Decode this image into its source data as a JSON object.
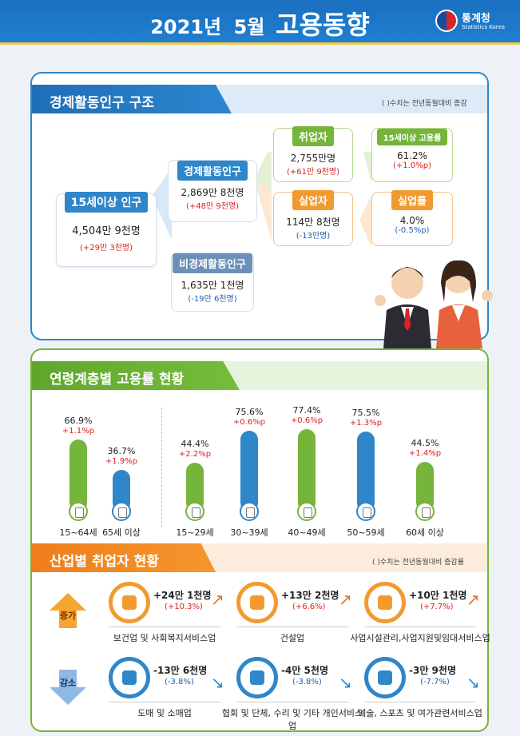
{
  "header": {
    "year_label": "2021년",
    "month_label": "5월",
    "title": "고용동향",
    "logo_name": "통계청",
    "logo_sub": "Statistics Korea"
  },
  "section1": {
    "title": "경제활동인구 구조",
    "note": "( )수치는 전년동월대비 증감",
    "population": {
      "label": "15세이상 인구",
      "value": "4,504만 9천명",
      "change": "(+29만 3천명)"
    },
    "active": {
      "label": "경제활동인구",
      "value": "2,869만 8천명",
      "change": "(+48만 9천명)"
    },
    "inactive": {
      "label": "비경제활동인구",
      "value": "1,635만 1천명",
      "change": "(-19만 6천명)"
    },
    "employed": {
      "label": "취업자",
      "value": "2,755만명",
      "change": "(+61만 9천명)"
    },
    "unemployed": {
      "label": "실업자",
      "value": "114만 8천명",
      "change": "(-13만명)"
    },
    "emp_rate": {
      "label": "15세이상 고용률",
      "value": "61.2%",
      "change": "(+1.0%p)"
    },
    "unemp_rate": {
      "label": "실업률",
      "value": "4.0%",
      "change": "(-0.5%p)"
    }
  },
  "section2": {
    "title": "연령계층별 고용률 현황"
  },
  "chart_data": {
    "type": "bar",
    "categories": [
      "15~64세",
      "65세 이상",
      "15~29세",
      "30~39세",
      "40~49세",
      "50~59세",
      "60세 이상"
    ],
    "values": [
      66.9,
      36.7,
      44.4,
      75.6,
      77.4,
      75.5,
      44.5
    ],
    "value_labels": [
      "66.9%",
      "36.7%",
      "44.4%",
      "75.6%",
      "77.4%",
      "75.5%",
      "44.5%"
    ],
    "changes": [
      "+1.1%p",
      "+1.9%p",
      "+2.2%p",
      "+0.6%p",
      "+0.6%p",
      "+1.3%p",
      "+1.4%p"
    ],
    "colors": [
      "#74b53a",
      "#2f86c9",
      "#74b53a",
      "#2f86c9",
      "#74b53a",
      "#2f86c9",
      "#74b53a"
    ]
  },
  "section3": {
    "title": "산업별 취업자 현황",
    "note": "( )수치는 전년동월대비 증감률",
    "increase_label": "증가",
    "decrease_label": "감소",
    "increase": [
      {
        "name": "보건업 및 사회복지서비스업",
        "value": "+24만 1천명",
        "change": "(+10.3%)",
        "icon": "first-aid-icon"
      },
      {
        "name": "건설업",
        "value": "+13만 2천명",
        "change": "(+6.6%)",
        "icon": "excavator-icon"
      },
      {
        "name": "사업시설관리,사업지원및임대서비스업",
        "value": "+10만 1천명",
        "change": "(+7.7%)",
        "icon": "tools-icon"
      }
    ],
    "decrease": [
      {
        "name": "도매 및 소매업",
        "value": "-13만 6천명",
        "change": "(-3.8%)",
        "icon": "basket-icon"
      },
      {
        "name": "협회 및 단체, 수리 및 기타 개인서비스업",
        "value": "-4만 5천명",
        "change": "(-3.8%)",
        "icon": "repair-icon"
      },
      {
        "name": "예술, 스포츠 및 여가관련서비스업",
        "value": "-3만 9천명",
        "change": "(-7.7%)",
        "icon": "sports-icon"
      }
    ]
  },
  "colors": {
    "header_blue": "#1f7fd0",
    "green": "#74b53a",
    "blue": "#2f86c9",
    "orange": "#f29a2e",
    "red_text": "#d9231d"
  }
}
